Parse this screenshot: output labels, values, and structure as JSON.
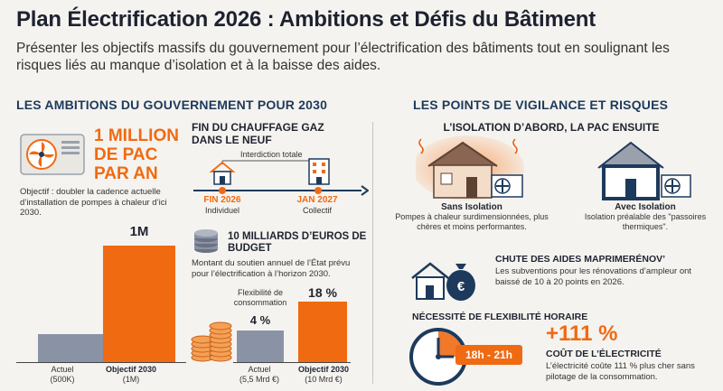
{
  "title": "Plan Électrification 2026 : Ambitions et Défis du Bâtiment",
  "subtitle": "Présenter les objectifs massifs du gouvernement pour l’électrification des bâtiments tout en soulignant les risques liés au manque d’isolation et à la baisse des aides.",
  "left": {
    "heading": "LES AMBITIONS DU GOUVERNEMENT POUR 2030",
    "pac": {
      "headline": "1 MILLION DE PAC PAR AN",
      "text": "Objectif : doubler la cadence actuelle d’installation de pompes à chaleur d’ici 2030.",
      "bar_actual_label": "Actuel",
      "bar_actual_sub": "(500K)",
      "bar_actual_value": 500000,
      "bar_target_label": "Objectif 2030",
      "bar_target_sub": "(1M)",
      "bar_target_top": "1M",
      "bar_target_value": 1000000
    },
    "gas": {
      "heading": "FIN DU CHAUFFAGE GAZ DANS LE NEUF",
      "banner": "Interdiction totale",
      "d1": "FIN 2026",
      "d1_sub": "Individuel",
      "d2": "JAN 2027",
      "d2_sub": "Collectif"
    },
    "budget": {
      "heading": "10 MILLIARDS D’EUROS DE BUDGET",
      "text": "Montant du soutien annuel de l’État prévu pour l’électrification à l’horizon 2030.",
      "flex_label": "Flexibilité de consommation",
      "bar_actual_top": "4 %",
      "bar_actual_label": "Actuel",
      "bar_actual_sub": "(5,5 Mrd €)",
      "bar_actual_value": 4,
      "bar_target_top": "18 %",
      "bar_target_label": "Objectif 2030",
      "bar_target_sub": "(10 Mrd €)",
      "bar_target_value": 18
    }
  },
  "right": {
    "heading": "LES POINTS DE VIGILANCE ET RISQUES",
    "iso": {
      "heading": "L’ISOLATION D’ABORD, LA PAC ENSUITE",
      "a_title": "Sans Isolation",
      "a_text": "Pompes à chaleur surdimensionnées, plus chères et moins performantes.",
      "b_title": "Avec Isolation",
      "b_text": "Isolation préalable des \"passoires thermiques\"."
    },
    "aides": {
      "heading": "CHUTE DES AIDES MAPRIMERÉNOV’",
      "text": "Les subventions pour les rénovations d’ampleur ont baissé de 10 à 20 points en 2026."
    },
    "flex": {
      "heading": "NÉCESSITÉ DE FLEXIBILITÉ HORAIRE",
      "hours": "18h - 21h",
      "big": "+111 %",
      "sub": "COÛT DE L’ÉLECTRICITÉ",
      "text": "L’électricité coûte 111 % plus cher sans pilotage de la consommation."
    }
  }
}
